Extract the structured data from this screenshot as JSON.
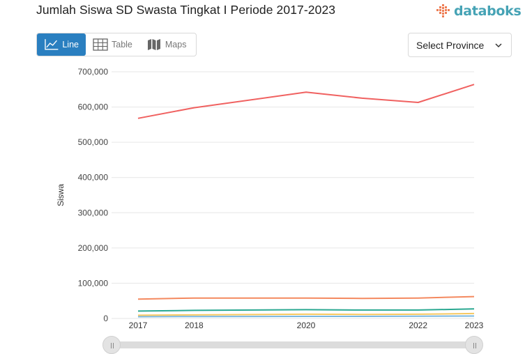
{
  "header": {
    "title": "Jumlah Siswa SD Swasta Tingkat I Periode 2017-2023",
    "logo_text": "databoks"
  },
  "view_toggle": {
    "line_label": "Line",
    "table_label": "Table",
    "maps_label": "Maps",
    "active": "Line"
  },
  "province_select": {
    "label": "Select Province"
  },
  "colors": {
    "accent": "#2a7fc0",
    "logo": "#46a3b5",
    "series": [
      "#f06160",
      "#f4895f",
      "#2aa891",
      "#f6c860",
      "#7ab7e0"
    ]
  },
  "chart_data": {
    "type": "line",
    "title": "Jumlah Siswa SD Swasta Tingkat I Periode 2017-2023",
    "xlabel": "",
    "ylabel": "Siswa",
    "x_ticks": [
      "2017",
      "2018",
      "2020",
      "2022",
      "2023"
    ],
    "y_ticks": [
      "0",
      "100,000",
      "200,000",
      "300,000",
      "400,000",
      "500,000",
      "600,000",
      "700,000"
    ],
    "ylim": [
      0,
      700000
    ],
    "grid": true,
    "legend": "none",
    "series": [
      {
        "x": [
          "2017",
          "2018",
          "2020",
          "2021",
          "2022",
          "2023"
        ],
        "values": [
          568000,
          598000,
          642000,
          625000,
          613000,
          664000
        ]
      },
      {
        "x": [
          "2017",
          "2018",
          "2020",
          "2021",
          "2022",
          "2023"
        ],
        "values": [
          55000,
          58000,
          58000,
          57000,
          58000,
          62000
        ]
      },
      {
        "x": [
          "2017",
          "2018",
          "2020",
          "2021",
          "2022",
          "2023"
        ],
        "values": [
          21000,
          23000,
          25000,
          24000,
          24000,
          27000
        ]
      },
      {
        "x": [
          "2017",
          "2018",
          "2020",
          "2021",
          "2022",
          "2023"
        ],
        "values": [
          9000,
          10000,
          12000,
          11500,
          12000,
          14000
        ]
      },
      {
        "x": [
          "2017",
          "2018",
          "2020",
          "2021",
          "2022",
          "2023"
        ],
        "values": [
          5000,
          5500,
          6000,
          6000,
          6500,
          7000
        ]
      }
    ]
  }
}
